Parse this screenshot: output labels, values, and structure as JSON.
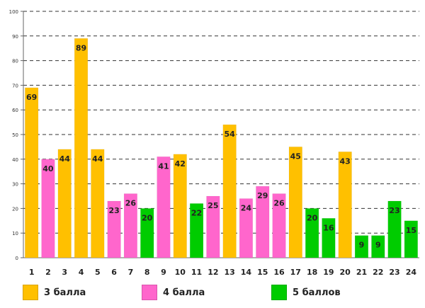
{
  "chart_data": {
    "type": "bar",
    "title": "",
    "xlabel": "",
    "ylabel": "",
    "ylim": [
      0,
      100
    ],
    "yticks": [
      "0",
      "10",
      "20",
      "30",
      "40",
      "50",
      "60",
      "70",
      "80",
      "90",
      "100"
    ],
    "grid": true,
    "categories": [
      "1",
      "2",
      "3",
      "4",
      "5",
      "6",
      "7",
      "8",
      "9",
      "10",
      "11",
      "12",
      "13",
      "14",
      "15",
      "16",
      "17",
      "18",
      "19",
      "20",
      "21",
      "22",
      "23",
      "24"
    ],
    "values": [
      69,
      40,
      44,
      89,
      44,
      23,
      26,
      20,
      41,
      42,
      22,
      25,
      54,
      24,
      29,
      26,
      45,
      20,
      16,
      43,
      9,
      9,
      23,
      15
    ],
    "groups": [
      0,
      1,
      0,
      0,
      0,
      1,
      1,
      2,
      1,
      0,
      2,
      1,
      0,
      1,
      1,
      1,
      0,
      2,
      2,
      0,
      2,
      2,
      2,
      2
    ],
    "series": [
      {
        "name": "3 балла",
        "color": "#FFC000"
      },
      {
        "name": "4 балла",
        "color": "#FF66CC"
      },
      {
        "name": "5 баллов",
        "color": "#00CC00"
      }
    ]
  }
}
